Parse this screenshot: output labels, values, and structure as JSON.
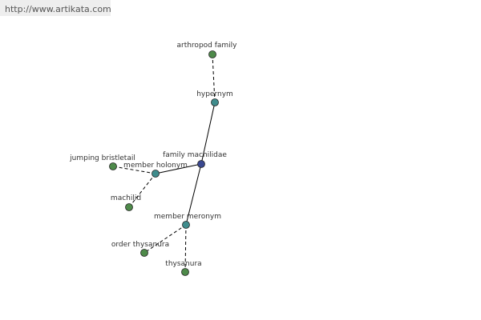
{
  "header": {
    "url": "http://www.artikata.com"
  },
  "nodes": [
    {
      "label": "arthropod family"
    },
    {
      "label": "hypernym"
    },
    {
      "label": "family machilidae"
    },
    {
      "label": "member holonym"
    },
    {
      "label": "jumping bristletail"
    },
    {
      "label": "machilid"
    },
    {
      "label": "member meronym"
    },
    {
      "label": "order thysanura"
    },
    {
      "label": "thysanura"
    }
  ]
}
